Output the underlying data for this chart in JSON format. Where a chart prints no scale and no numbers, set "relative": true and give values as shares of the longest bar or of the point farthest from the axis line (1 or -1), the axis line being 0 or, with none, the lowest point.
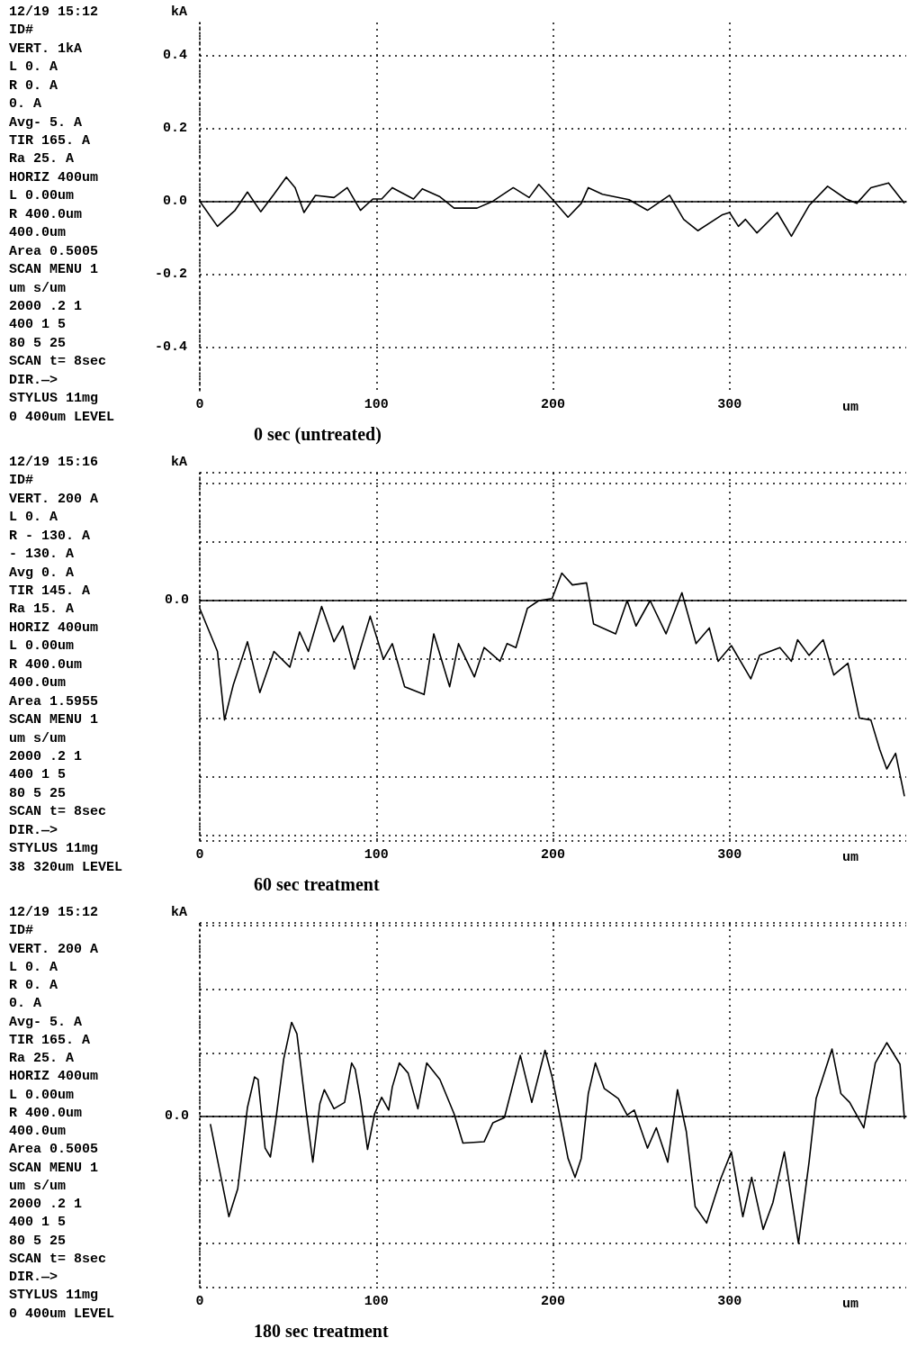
{
  "chart_data": [
    {
      "type": "line",
      "title": "0 sec (untreated)",
      "xlabel": "um",
      "ylabel": "kA",
      "grid": true,
      "xlim": [
        0,
        400
      ],
      "xticks": [
        0,
        100,
        200,
        300
      ],
      "ylim": [
        -0.52,
        0.49
      ],
      "yticks": [
        0.4,
        0.2,
        {
          "value": 0,
          "label": "0.0"
        },
        -0.2,
        -0.4
      ],
      "annotations": [
        "12/19 15:12",
        "ID#",
        "VERT. 1kA",
        "L 0. A",
        "R 0. A",
        "0. A",
        "Avg- 5. A",
        "TIR 165. A",
        "Ra 25. A",
        "HORIZ 400um",
        "L 0.00um",
        "R 400.0um",
        "400.0um",
        "Area 0.5005",
        "SCAN MENU 1",
        "um s/um",
        "2000 .2 1",
        "400 1 5",
        "80 5 25",
        "SCAN t= 8sec",
        "DIR.—>",
        "STYLUS 11mg",
        "0 400um LEVEL"
      ],
      "series": [
        {
          "color": "#000000",
          "x": [
            0,
            10,
            20,
            27,
            34.5,
            42,
            49,
            54,
            59,
            65.5,
            76,
            83.5,
            91,
            98,
            103,
            109,
            121,
            126,
            136,
            144,
            157,
            166,
            177.5,
            186.5,
            192,
            199.5,
            208.5,
            216,
            220,
            228,
            243,
            253.5,
            266,
            274,
            282,
            296,
            300,
            305,
            309,
            315.5,
            327,
            335,
            345,
            355.5,
            366,
            372,
            380,
            390,
            399
          ],
          "values": [
            0,
            -0.069,
            -0.025,
            0.025,
            -0.029,
            0.019,
            0.066,
            0.037,
            -0.031,
            0.016,
            0.01,
            0.037,
            -0.025,
            0.006,
            0.006,
            0.037,
            0.006,
            0.034,
            0.012,
            -0.019,
            -0.019,
            0,
            0.037,
            0.01,
            0.046,
            0.006,
            -0.044,
            -0.006,
            0.037,
            0.019,
            0.004,
            -0.025,
            0.016,
            -0.05,
            -0.081,
            -0.037,
            -0.031,
            -0.069,
            -0.05,
            -0.087,
            -0.031,
            -0.096,
            -0.012,
            0.041,
            0.006,
            -0.006,
            0.037,
            0.05,
            -0.006
          ]
        }
      ]
    },
    {
      "type": "line",
      "title": "60 sec treatment",
      "xlabel": "um",
      "ylabel": "kA",
      "grid": true,
      "relative": true,
      "xlim": [
        0,
        400
      ],
      "xticks": [
        0,
        100,
        200,
        300
      ],
      "annotations": [
        "12/19 15:16",
        "ID#",
        "VERT. 200 A",
        "L 0. A",
        "R - 130. A",
        "- 130. A",
        "Avg 0. A",
        "TIR 145. A",
        "Ra 15. A",
        "HORIZ 400um",
        "L 0.00um",
        "R 400.0um",
        "400.0um",
        "Area 1.5955",
        "SCAN MENU 1",
        "um s/um",
        "2000 .2 1",
        "400 1 5",
        "80 5 25",
        "SCAN t= 8sec",
        "DIR.—>",
        "STYLUS 11mg",
        "38 320um LEVEL"
      ],
      "ref_lines": [
        {
          "axis": "y",
          "value": 0,
          "label": "0.0"
        }
      ],
      "series": [
        {
          "color": "#000000",
          "x": [
            0,
            10,
            14,
            19,
            27,
            34,
            42,
            51,
            56.5,
            61.5,
            69,
            76,
            81,
            87.5,
            96.5,
            104,
            109,
            116,
            127,
            132.5,
            141.5,
            146.5,
            155.5,
            161,
            170,
            174,
            179,
            185.5,
            192,
            199.5,
            205,
            211,
            219,
            223,
            235.5,
            242,
            247,
            255,
            264,
            273,
            281,
            288.5,
            293.5,
            301,
            312,
            317,
            328.5,
            335,
            338.5,
            345,
            353,
            359,
            367,
            373.5,
            380,
            385,
            389,
            394,
            399
          ],
          "values": [
            -0.04,
            -0.26,
            -0.61,
            -0.43,
            -0.21,
            -0.47,
            -0.26,
            -0.34,
            -0.16,
            -0.26,
            -0.03,
            -0.21,
            -0.13,
            -0.35,
            -0.08,
            -0.3,
            -0.22,
            -0.44,
            -0.48,
            -0.17,
            -0.44,
            -0.22,
            -0.39,
            -0.24,
            -0.31,
            -0.22,
            -0.24,
            -0.04,
            0,
            0.01,
            0.14,
            0.08,
            0.09,
            -0.12,
            -0.17,
            0,
            -0.13,
            0,
            -0.17,
            0.04,
            -0.22,
            -0.14,
            -0.31,
            -0.23,
            -0.4,
            -0.28,
            -0.24,
            -0.31,
            -0.2,
            -0.28,
            -0.2,
            -0.38,
            -0.32,
            -0.6,
            -0.61,
            -0.76,
            -0.86,
            -0.78,
            -1
          ]
        }
      ]
    },
    {
      "type": "line",
      "title": "180 sec treatment",
      "xlabel": "um",
      "ylabel": "kA",
      "grid": true,
      "relative": true,
      "xlim": [
        0,
        400
      ],
      "xticks": [
        0,
        100,
        200,
        300
      ],
      "annotations": [
        "12/19 15:12",
        "ID#",
        "VERT. 200 A",
        "L 0. A",
        "R 0. A",
        "0. A",
        "Avg- 5. A",
        "TIR 165. A",
        "Ra 25. A",
        "HORIZ 400um",
        "L 0.00um",
        "R 400.0um",
        "400.0um",
        "Area 0.5005",
        "SCAN MENU 1",
        "um s/um",
        "2000 .2 1",
        "400 1 5",
        "80 5 25",
        "SCAN t= 8sec",
        "DIR.—>",
        "STYLUS 11mg",
        "0 400um LEVEL"
      ],
      "ref_lines": [
        {
          "axis": "y",
          "value": 0,
          "label": "0.0"
        }
      ],
      "series": [
        {
          "color": "#000000",
          "x": [
            6,
            11,
            16.5,
            21.5,
            27,
            31,
            33,
            37,
            40,
            43.5,
            47.5,
            52,
            55,
            60,
            64,
            68,
            70.5,
            76,
            82,
            86,
            88,
            91,
            95,
            99,
            103,
            107,
            109,
            113,
            118,
            123.5,
            128.5,
            136,
            144,
            149,
            161,
            166,
            172.5,
            176,
            181.5,
            188,
            195.5,
            199.5,
            204.5,
            208.5,
            212.5,
            216,
            220,
            224,
            229,
            237,
            242,
            246,
            253.5,
            258.5,
            265,
            270.5,
            275.5,
            280.5,
            287,
            295,
            301,
            307.5,
            312.5,
            319,
            324.5,
            331,
            339,
            345,
            349,
            358,
            363,
            368,
            376,
            382.5,
            389,
            396.5,
            399
          ],
          "values": [
            -0.06,
            -0.41,
            -0.79,
            -0.57,
            0.07,
            0.31,
            0.29,
            -0.25,
            -0.32,
            0.02,
            0.45,
            0.74,
            0.65,
            0.07,
            -0.36,
            0.1,
            0.21,
            0.06,
            0.11,
            0.42,
            0.37,
            0.13,
            -0.26,
            0.02,
            0.15,
            0.05,
            0.23,
            0.42,
            0.34,
            0.06,
            0.42,
            0.29,
            0.02,
            -0.21,
            -0.2,
            -0.05,
            -0.01,
            0.18,
            0.48,
            0.11,
            0.52,
            0.31,
            -0.04,
            -0.33,
            -0.48,
            -0.33,
            0.18,
            0.42,
            0.22,
            0.14,
            0.01,
            0.05,
            -0.25,
            -0.09,
            -0.36,
            0.21,
            -0.12,
            -0.71,
            -0.84,
            -0.49,
            -0.28,
            -0.79,
            -0.48,
            -0.89,
            -0.68,
            -0.28,
            -1,
            -0.36,
            0.14,
            0.53,
            0.18,
            0.11,
            -0.09,
            0.42,
            0.58,
            0.41,
            -0.02
          ]
        }
      ]
    }
  ]
}
